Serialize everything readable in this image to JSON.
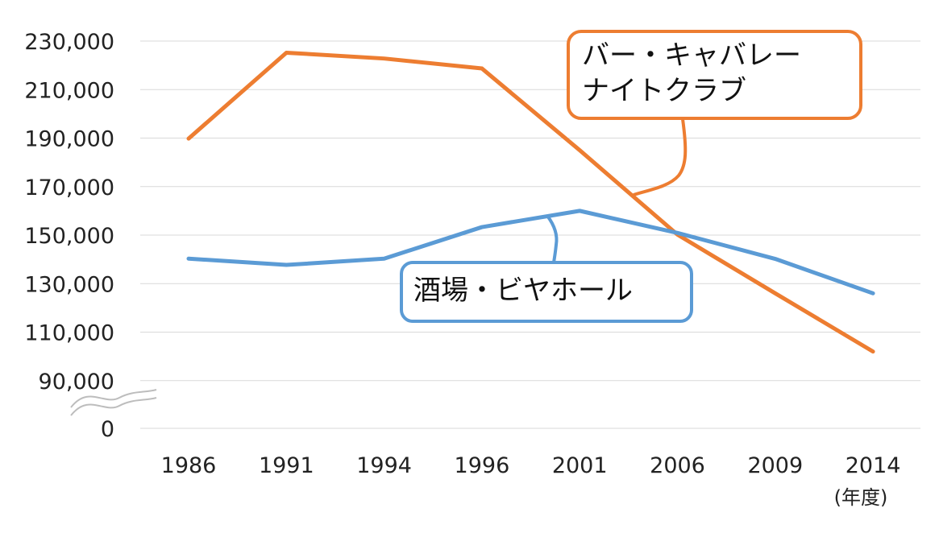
{
  "chart_data": {
    "type": "line",
    "categories": [
      "1986",
      "1991",
      "1994",
      "1996",
      "2001",
      "2006",
      "2009",
      "2014"
    ],
    "x_unit_label": "(年度)",
    "y_ticks": [
      {
        "value": 0,
        "label": "0"
      },
      {
        "value": 90000,
        "label": "90,000"
      },
      {
        "value": 110000,
        "label": "110,000"
      },
      {
        "value": 130000,
        "label": "130,000"
      },
      {
        "value": 150000,
        "label": "150,000"
      },
      {
        "value": 170000,
        "label": "170,000"
      },
      {
        "value": 190000,
        "label": "190,000"
      },
      {
        "value": 210000,
        "label": "210,000"
      },
      {
        "value": 230000,
        "label": "230,000"
      }
    ],
    "axis_break": true,
    "ylim": [
      90000,
      230000
    ],
    "grid": true,
    "series": [
      {
        "name": "バー・キャバレー ナイトクラブ",
        "label_lines": [
          "バー・キャバレー",
          "ナイトクラブ"
        ],
        "color": "#ED7D31",
        "values": [
          189800,
          225200,
          222800,
          218700,
          185000,
          150200,
          126000,
          102000
        ]
      },
      {
        "name": "酒場・ビヤホール",
        "label_lines": [
          "酒場・ビヤホール"
        ],
        "color": "#5B9BD5",
        "values": [
          140300,
          137700,
          140300,
          153300,
          160000,
          150900,
          140200,
          126000
        ]
      }
    ]
  }
}
